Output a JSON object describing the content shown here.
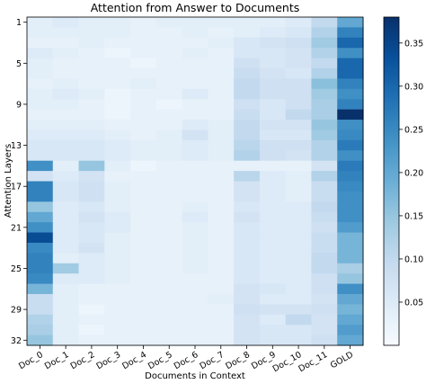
{
  "chart_data": {
    "type": "heatmap",
    "title": "Attention from Answer to Documents",
    "xlabel": "Documents in Context",
    "ylabel": "Attention Layers",
    "x_categories": [
      "Doc_0",
      "Doc_1",
      "Doc_2",
      "Doc_3",
      "Doc_4",
      "Doc_5",
      "Doc_6",
      "Doc_7",
      "Doc_8",
      "Doc_9",
      "Doc_10",
      "Doc_11",
      "GOLD"
    ],
    "highlight_category": "GOLD",
    "highlight_color": "#d4a017",
    "y_tick_labels": [
      "1",
      "5",
      "9",
      "13",
      "17",
      "21",
      "25",
      "29",
      "32"
    ],
    "y_tick_layers": [
      1,
      5,
      9,
      13,
      17,
      21,
      25,
      29,
      32
    ],
    "n_layers": 32,
    "colormap": "Blues",
    "colorbar_range": [
      0.0,
      0.38
    ],
    "colorbar_ticks": [
      "0.05",
      "0.10",
      "0.15",
      "0.20",
      "0.25",
      "0.30",
      "0.35"
    ],
    "colorbar_tick_values": [
      0.05,
      0.1,
      0.15,
      0.2,
      0.25,
      0.3,
      0.35
    ],
    "values": [
      [
        0.04,
        0.05,
        0.04,
        0.04,
        0.03,
        0.04,
        0.04,
        0.04,
        0.04,
        0.04,
        0.05,
        0.1,
        0.2
      ],
      [
        0.04,
        0.04,
        0.04,
        0.04,
        0.03,
        0.03,
        0.04,
        0.03,
        0.04,
        0.05,
        0.06,
        0.12,
        0.26
      ],
      [
        0.03,
        0.03,
        0.04,
        0.03,
        0.03,
        0.03,
        0.03,
        0.04,
        0.06,
        0.07,
        0.08,
        0.14,
        0.3
      ],
      [
        0.05,
        0.04,
        0.03,
        0.02,
        0.03,
        0.03,
        0.04,
        0.03,
        0.06,
        0.06,
        0.07,
        0.12,
        0.24
      ],
      [
        0.04,
        0.03,
        0.03,
        0.03,
        0.02,
        0.03,
        0.03,
        0.03,
        0.08,
        0.06,
        0.07,
        0.1,
        0.3
      ],
      [
        0.04,
        0.03,
        0.03,
        0.03,
        0.03,
        0.03,
        0.03,
        0.03,
        0.09,
        0.07,
        0.06,
        0.12,
        0.3
      ],
      [
        0.03,
        0.04,
        0.03,
        0.03,
        0.04,
        0.03,
        0.03,
        0.03,
        0.1,
        0.08,
        0.08,
        0.16,
        0.26
      ],
      [
        0.04,
        0.05,
        0.04,
        0.02,
        0.03,
        0.03,
        0.05,
        0.03,
        0.1,
        0.08,
        0.08,
        0.14,
        0.24
      ],
      [
        0.04,
        0.04,
        0.03,
        0.02,
        0.03,
        0.02,
        0.03,
        0.03,
        0.08,
        0.06,
        0.08,
        0.13,
        0.26
      ],
      [
        0.03,
        0.03,
        0.03,
        0.02,
        0.03,
        0.03,
        0.03,
        0.03,
        0.09,
        0.06,
        0.1,
        0.13,
        0.38
      ],
      [
        0.04,
        0.04,
        0.04,
        0.03,
        0.03,
        0.03,
        0.05,
        0.04,
        0.1,
        0.07,
        0.07,
        0.15,
        0.24
      ],
      [
        0.05,
        0.05,
        0.05,
        0.04,
        0.03,
        0.04,
        0.07,
        0.04,
        0.1,
        0.06,
        0.06,
        0.14,
        0.25
      ],
      [
        0.06,
        0.06,
        0.06,
        0.05,
        0.04,
        0.04,
        0.05,
        0.04,
        0.11,
        0.08,
        0.08,
        0.12,
        0.27
      ],
      [
        0.06,
        0.06,
        0.06,
        0.05,
        0.04,
        0.04,
        0.05,
        0.04,
        0.12,
        0.08,
        0.07,
        0.12,
        0.24
      ],
      [
        0.24,
        0.04,
        0.15,
        0.04,
        0.02,
        0.03,
        0.03,
        0.03,
        0.03,
        0.03,
        0.03,
        0.07,
        0.27
      ],
      [
        0.07,
        0.05,
        0.07,
        0.03,
        0.03,
        0.03,
        0.03,
        0.03,
        0.11,
        0.05,
        0.04,
        0.12,
        0.26
      ],
      [
        0.26,
        0.06,
        0.08,
        0.04,
        0.03,
        0.03,
        0.03,
        0.03,
        0.07,
        0.05,
        0.04,
        0.09,
        0.25
      ],
      [
        0.26,
        0.06,
        0.08,
        0.04,
        0.03,
        0.03,
        0.03,
        0.03,
        0.07,
        0.05,
        0.04,
        0.09,
        0.24
      ],
      [
        0.15,
        0.05,
        0.06,
        0.04,
        0.03,
        0.03,
        0.04,
        0.03,
        0.06,
        0.05,
        0.05,
        0.1,
        0.24
      ],
      [
        0.2,
        0.05,
        0.07,
        0.05,
        0.03,
        0.03,
        0.05,
        0.03,
        0.07,
        0.05,
        0.05,
        0.09,
        0.24
      ],
      [
        0.24,
        0.05,
        0.06,
        0.05,
        0.03,
        0.03,
        0.04,
        0.03,
        0.06,
        0.05,
        0.05,
        0.08,
        0.22
      ],
      [
        0.34,
        0.05,
        0.06,
        0.04,
        0.03,
        0.03,
        0.04,
        0.03,
        0.06,
        0.05,
        0.05,
        0.09,
        0.18
      ],
      [
        0.25,
        0.05,
        0.07,
        0.04,
        0.03,
        0.03,
        0.04,
        0.03,
        0.06,
        0.05,
        0.05,
        0.09,
        0.18
      ],
      [
        0.26,
        0.04,
        0.05,
        0.04,
        0.03,
        0.03,
        0.04,
        0.03,
        0.06,
        0.05,
        0.05,
        0.1,
        0.18
      ],
      [
        0.26,
        0.14,
        0.05,
        0.04,
        0.03,
        0.03,
        0.04,
        0.03,
        0.06,
        0.05,
        0.05,
        0.1,
        0.13
      ],
      [
        0.25,
        0.05,
        0.05,
        0.04,
        0.03,
        0.03,
        0.03,
        0.03,
        0.06,
        0.05,
        0.05,
        0.08,
        0.15
      ],
      [
        0.18,
        0.04,
        0.03,
        0.03,
        0.03,
        0.03,
        0.03,
        0.03,
        0.07,
        0.06,
        0.05,
        0.08,
        0.24
      ],
      [
        0.09,
        0.04,
        0.03,
        0.03,
        0.03,
        0.03,
        0.03,
        0.04,
        0.07,
        0.05,
        0.05,
        0.07,
        0.2
      ],
      [
        0.09,
        0.04,
        0.02,
        0.03,
        0.03,
        0.03,
        0.03,
        0.03,
        0.08,
        0.07,
        0.07,
        0.08,
        0.18
      ],
      [
        0.12,
        0.04,
        0.03,
        0.03,
        0.03,
        0.03,
        0.03,
        0.03,
        0.07,
        0.05,
        0.1,
        0.07,
        0.2
      ],
      [
        0.13,
        0.04,
        0.02,
        0.03,
        0.03,
        0.03,
        0.03,
        0.03,
        0.07,
        0.06,
        0.06,
        0.07,
        0.22
      ],
      [
        0.15,
        0.04,
        0.03,
        0.03,
        0.03,
        0.03,
        0.03,
        0.03,
        0.07,
        0.06,
        0.06,
        0.08,
        0.2
      ]
    ]
  }
}
